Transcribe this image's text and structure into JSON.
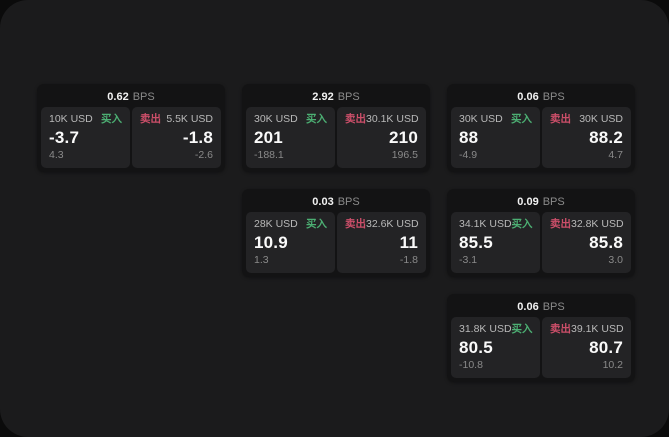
{
  "window": {
    "outer_background": "#0b0b0b",
    "background": "#1b1b1c"
  },
  "colors": {
    "buy": "#4caf73",
    "sell": "#cd4f6a",
    "card_bg": "#131314",
    "cell_bg": "#232325",
    "text_primary": "#f2f2f2",
    "text_secondary": "#8b8b8b",
    "text_label": "#b9b9b9"
  },
  "cards": [
    {
      "grid": {
        "col": 1,
        "row": 1
      },
      "bps_value": "0.62",
      "bps_unit": "BPS",
      "buy": {
        "size": "10K USD",
        "side_label": "买入",
        "price": "-3.7",
        "sub_value": "4.3"
      },
      "sell": {
        "side_label": "卖出",
        "size": "5.5K USD",
        "price": "-1.8",
        "sub_value": "-2.6"
      }
    },
    {
      "grid": {
        "col": 2,
        "row": 1
      },
      "bps_value": "2.92",
      "bps_unit": "BPS",
      "buy": {
        "size": "30K USD",
        "side_label": "买入",
        "price": "201",
        "sub_value": "-188.1"
      },
      "sell": {
        "side_label": "卖出",
        "size": "30.1K USD",
        "price": "210",
        "sub_value": "196.5"
      }
    },
    {
      "grid": {
        "col": 3,
        "row": 1
      },
      "bps_value": "0.06",
      "bps_unit": "BPS",
      "buy": {
        "size": "30K USD",
        "side_label": "买入",
        "price": "88",
        "sub_value": "-4.9"
      },
      "sell": {
        "side_label": "卖出",
        "size": "30K USD",
        "price": "88.2",
        "sub_value": "4.7"
      }
    },
    {
      "grid": {
        "col": 2,
        "row": 2
      },
      "bps_value": "0.03",
      "bps_unit": "BPS",
      "buy": {
        "size": "28K USD",
        "side_label": "买入",
        "price": "10.9",
        "sub_value": "1.3"
      },
      "sell": {
        "side_label": "卖出",
        "size": "32.6K USD",
        "price": "11",
        "sub_value": "-1.8"
      }
    },
    {
      "grid": {
        "col": 3,
        "row": 2
      },
      "bps_value": "0.09",
      "bps_unit": "BPS",
      "buy": {
        "size": "34.1K USD",
        "side_label": "买入",
        "price": "85.5",
        "sub_value": "-3.1"
      },
      "sell": {
        "side_label": "卖出",
        "size": "32.8K USD",
        "price": "85.8",
        "sub_value": "3.0"
      }
    },
    {
      "grid": {
        "col": 3,
        "row": 3
      },
      "bps_value": "0.06",
      "bps_unit": "BPS",
      "buy": {
        "size": "31.8K USD",
        "side_label": "买入",
        "price": "80.5",
        "sub_value": "-10.8"
      },
      "sell": {
        "side_label": "卖出",
        "size": "39.1K USD",
        "price": "80.7",
        "sub_value": "10.2"
      }
    }
  ]
}
